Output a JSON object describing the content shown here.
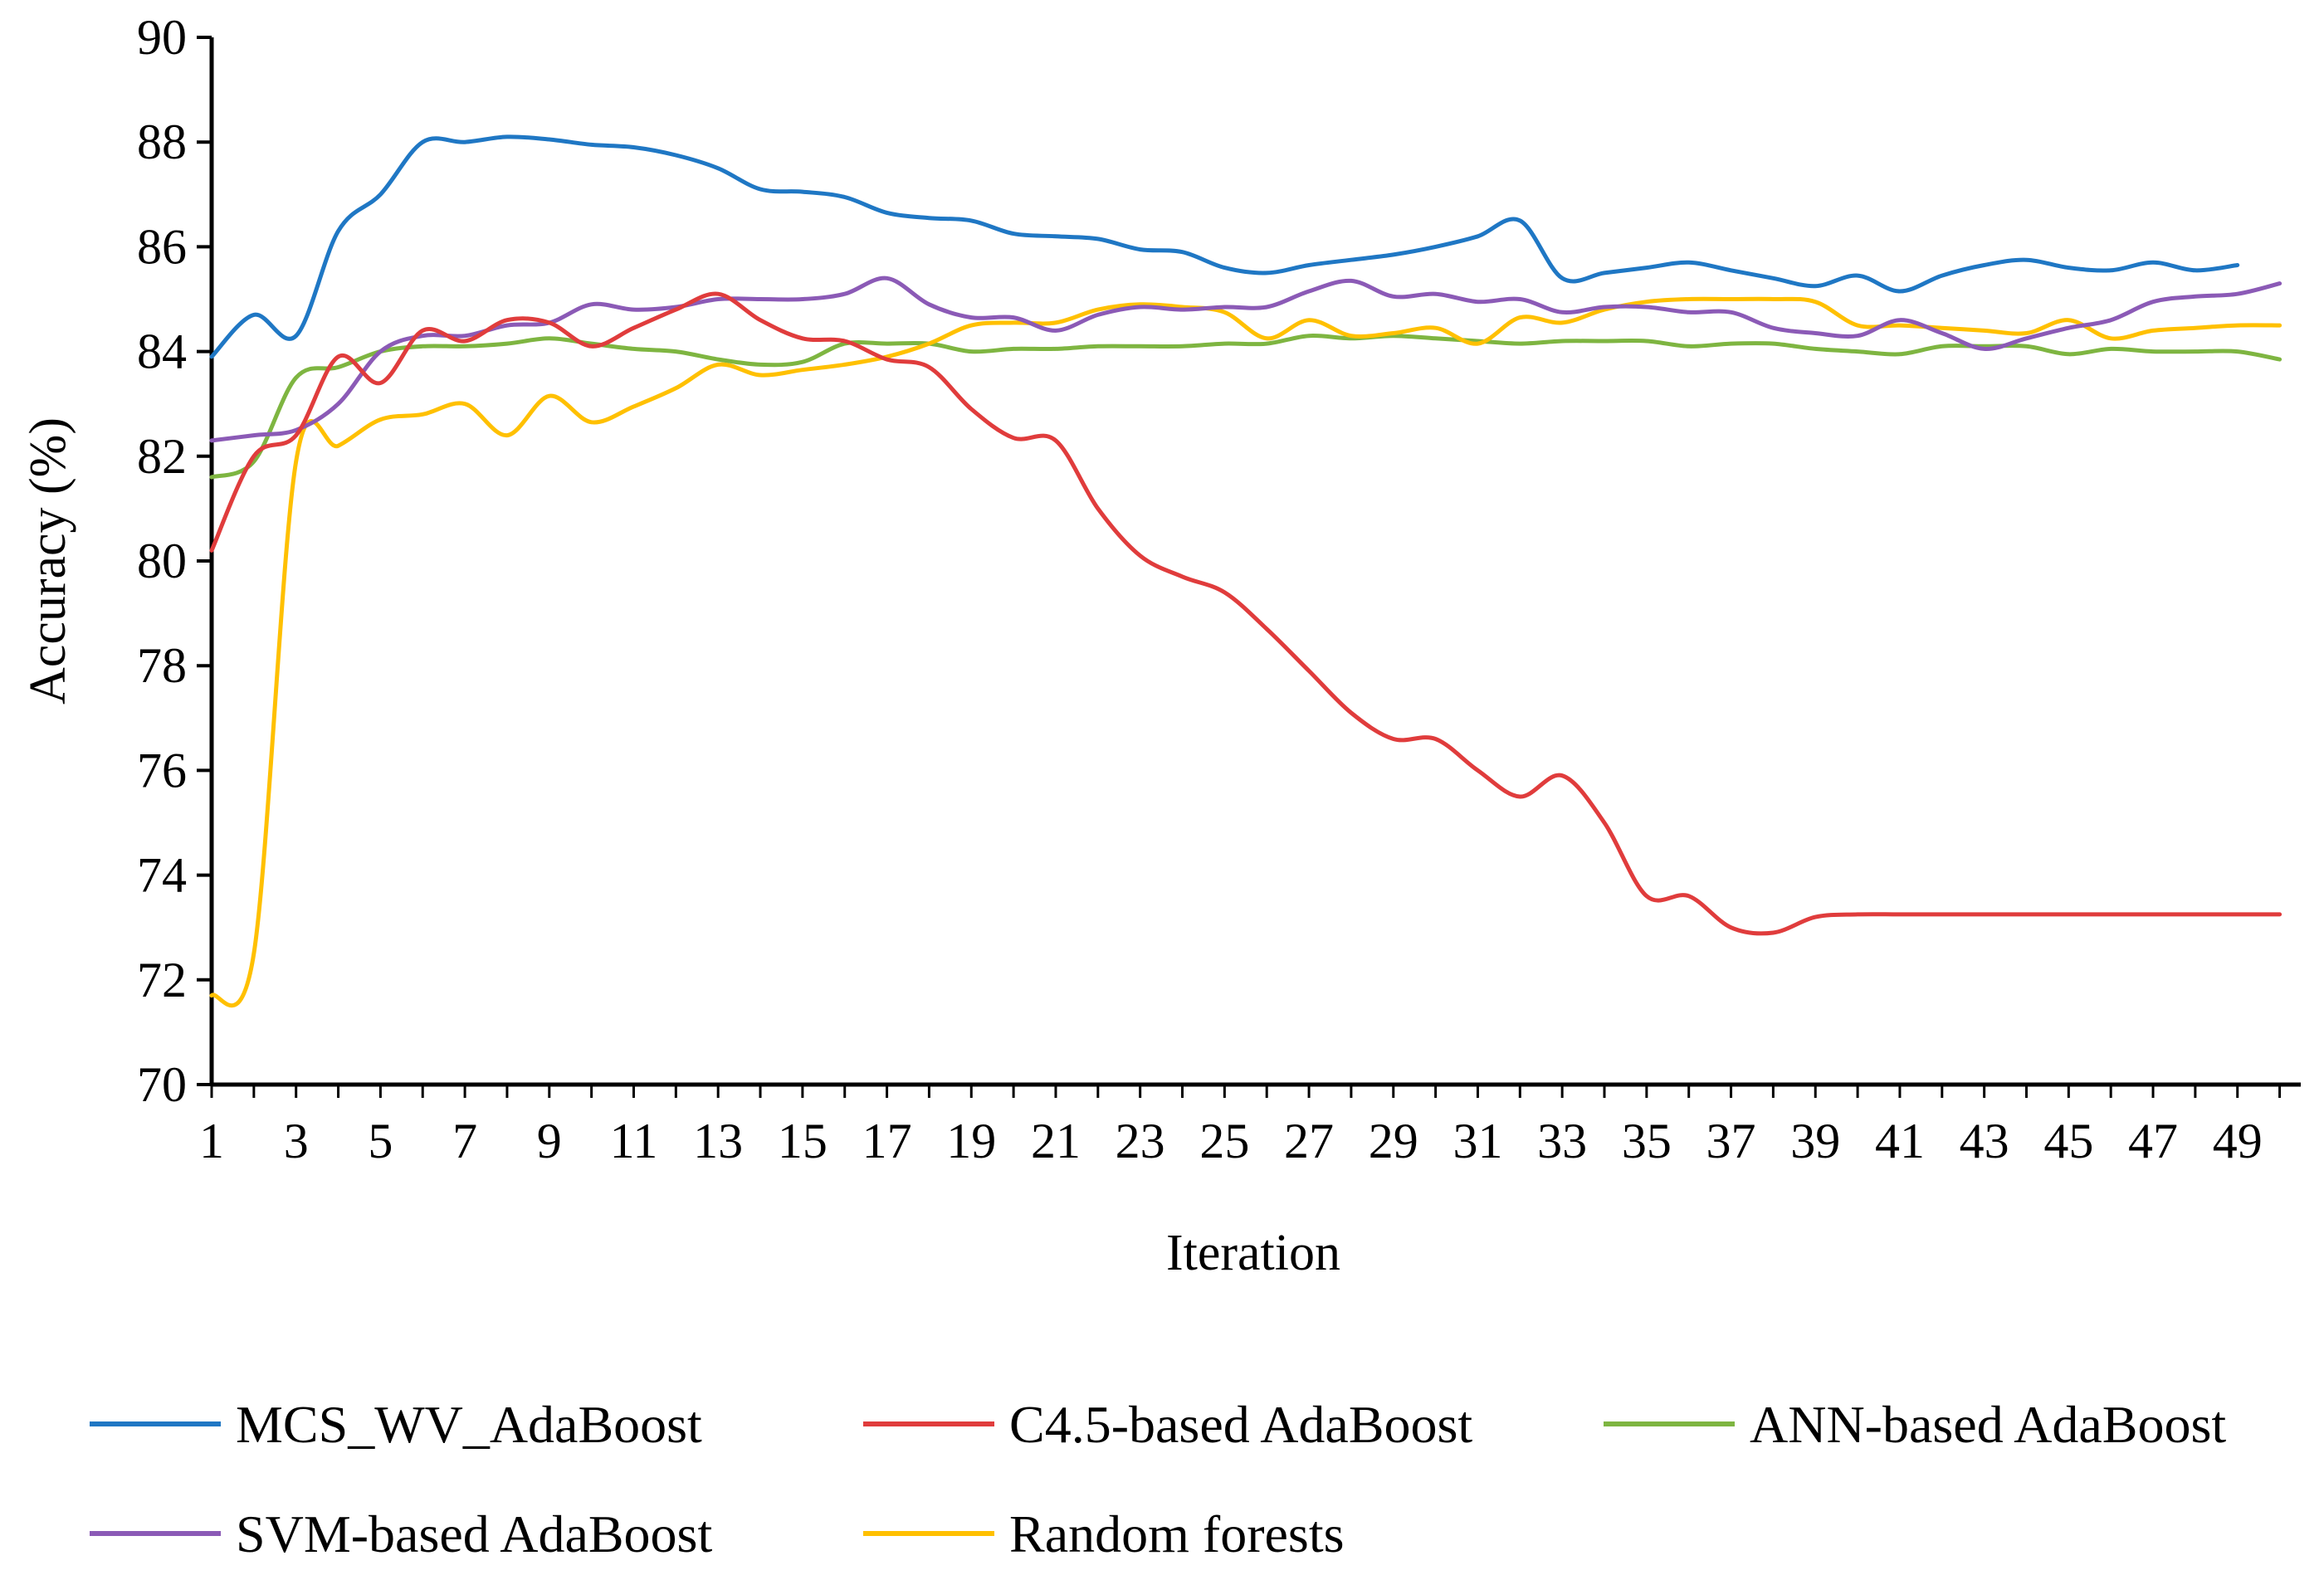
{
  "chart_data": {
    "type": "line",
    "title": "",
    "xlabel": "Iteration",
    "ylabel": "Accuracy (%)",
    "ylim": [
      70,
      90
    ],
    "yticks": [
      "70",
      "72",
      "74",
      "76",
      "78",
      "80",
      "82",
      "84",
      "86",
      "88",
      "90"
    ],
    "xtick_labels": [
      "1",
      "3",
      "5",
      "7",
      "9",
      "11",
      "13",
      "15",
      "17",
      "19",
      "21",
      "23",
      "25",
      "27",
      "29",
      "31",
      "33",
      "35",
      "37",
      "39",
      "41",
      "43",
      "45",
      "47",
      "49"
    ],
    "x": [
      1,
      2,
      3,
      4,
      5,
      6,
      7,
      8,
      9,
      10,
      11,
      12,
      13,
      14,
      15,
      16,
      17,
      18,
      19,
      20,
      21,
      22,
      23,
      24,
      25,
      26,
      27,
      28,
      29,
      30,
      31,
      32,
      33,
      34,
      35,
      36,
      37,
      38,
      39,
      40,
      41,
      42,
      43,
      44,
      45,
      46,
      47,
      48,
      49,
      50
    ],
    "legend_position": "bottom",
    "series": [
      {
        "name": "MCS_WV_AdaBoost",
        "color": "#1F77C4",
        "values": [
          83.9,
          84.7,
          84.3,
          86.3,
          87.0,
          88.0,
          88.0,
          88.1,
          88.05,
          87.95,
          87.9,
          87.75,
          87.5,
          87.1,
          87.05,
          86.95,
          86.65,
          86.55,
          86.5,
          86.25,
          86.2,
          86.15,
          85.95,
          85.9,
          85.6,
          85.5,
          85.65,
          85.75,
          85.85,
          86.0,
          86.2,
          86.5,
          85.4,
          85.5,
          85.6,
          85.7,
          85.55,
          85.4,
          85.25,
          85.45,
          85.15,
          85.45,
          85.65,
          85.75,
          85.6,
          85.55,
          85.7,
          85.55,
          85.65,
          null
        ]
      },
      {
        "name": "C4.5-based AdaBoost",
        "color": "#E03C3C",
        "values": [
          80.2,
          82.0,
          82.4,
          83.9,
          83.4,
          84.4,
          84.2,
          84.6,
          84.55,
          84.1,
          84.45,
          84.8,
          85.1,
          84.6,
          84.25,
          84.2,
          83.85,
          83.7,
          82.9,
          82.35,
          82.3,
          81.0,
          80.1,
          79.7,
          79.4,
          78.7,
          77.9,
          77.1,
          76.6,
          76.6,
          76.0,
          75.5,
          75.9,
          75.0,
          73.6,
          73.6,
          73.0,
          72.9,
          73.2,
          73.25,
          73.25,
          73.25,
          73.25,
          73.25,
          73.25,
          73.25,
          73.25,
          73.25,
          73.25,
          73.25
        ]
      },
      {
        "name": "ANN-based AdaBoost",
        "color": "#7EB541",
        "values": [
          81.6,
          81.9,
          83.5,
          83.7,
          84.0,
          84.1,
          84.1,
          84.15,
          84.25,
          84.15,
          84.05,
          84.0,
          83.85,
          83.75,
          83.8,
          84.15,
          84.15,
          84.15,
          84.0,
          84.05,
          84.05,
          84.1,
          84.1,
          84.1,
          84.15,
          84.15,
          84.3,
          84.25,
          84.3,
          84.25,
          84.2,
          84.15,
          84.2,
          84.2,
          84.2,
          84.1,
          84.15,
          84.15,
          84.05,
          84.0,
          83.95,
          84.1,
          84.1,
          84.1,
          83.95,
          84.05,
          84.0,
          84.0,
          84.0,
          83.85
        ]
      },
      {
        "name": "SVM-based AdaBoost",
        "color": "#8B5AB6",
        "values": [
          82.3,
          82.4,
          82.5,
          83.0,
          84.0,
          84.3,
          84.3,
          84.5,
          84.55,
          84.9,
          84.8,
          84.85,
          85.0,
          85.0,
          85.0,
          85.1,
          85.4,
          84.9,
          84.65,
          84.65,
          84.4,
          84.7,
          84.85,
          84.8,
          84.85,
          84.85,
          85.15,
          85.35,
          85.05,
          85.1,
          84.95,
          85.0,
          84.75,
          84.85,
          84.85,
          84.75,
          84.75,
          84.45,
          84.35,
          84.3,
          84.6,
          84.35,
          84.05,
          84.25,
          84.45,
          84.6,
          84.95,
          85.05,
          85.1,
          85.3
        ]
      },
      {
        "name": "Random forests",
        "color": "#FFC000",
        "values": [
          71.7,
          72.5,
          81.9,
          82.2,
          82.7,
          82.8,
          83.0,
          82.4,
          83.15,
          82.65,
          82.95,
          83.3,
          83.75,
          83.55,
          83.65,
          83.75,
          83.9,
          84.15,
          84.5,
          84.55,
          84.55,
          84.8,
          84.9,
          84.85,
          84.75,
          84.25,
          84.6,
          84.3,
          84.35,
          84.45,
          84.15,
          84.65,
          84.55,
          84.8,
          84.95,
          85.0,
          85.0,
          85.0,
          84.95,
          84.5,
          84.5,
          84.45,
          84.4,
          84.35,
          84.6,
          84.25,
          84.4,
          84.45,
          84.5,
          84.5
        ]
      }
    ]
  }
}
